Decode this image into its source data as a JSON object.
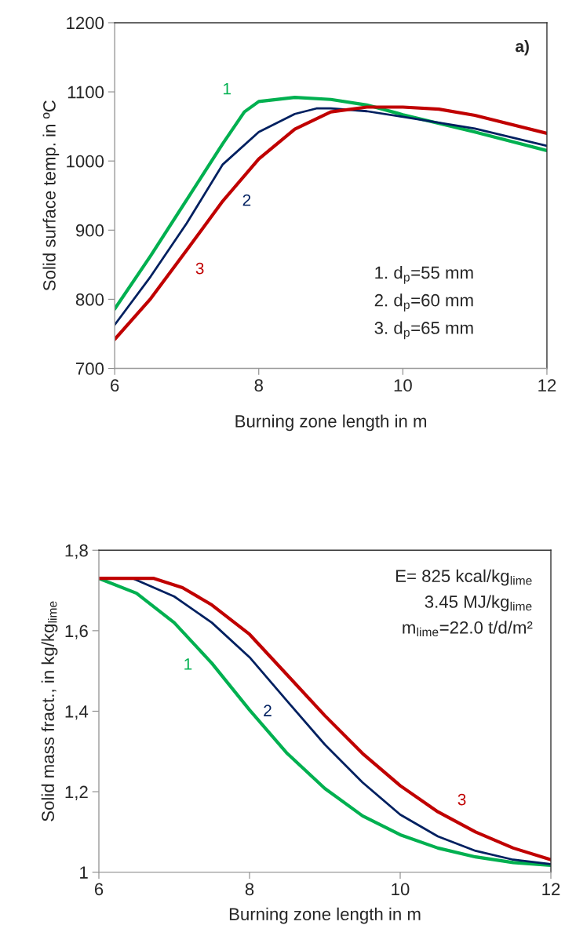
{
  "chart_data": [
    {
      "type": "line",
      "xlabel": "Burning zone length in m",
      "ylabel": "Solid surface temp. in ºC",
      "xlim": [
        6,
        12
      ],
      "ylim": [
        700,
        1200
      ],
      "xticks": [
        6,
        8,
        10,
        12
      ],
      "yticks": [
        700,
        800,
        900,
        1000,
        1100,
        1200
      ],
      "grid": false,
      "legend": false,
      "annotations": [
        "a)",
        "1. d$_{p}$=55 mm",
        "2. d$_{p}$=60 mm",
        "3. d$_{p}$=65 mm"
      ],
      "series": [
        {
          "name": "1",
          "color": "#00b050",
          "x": [
            6,
            6.5,
            7,
            7.5,
            7.8,
            8,
            8.5,
            9,
            9.5,
            10,
            11,
            12
          ],
          "values": [
            786,
            863,
            944,
            1025,
            1071,
            1086,
            1092,
            1089,
            1081,
            1067,
            1042,
            1015
          ]
        },
        {
          "name": "2",
          "color": "#002060",
          "x": [
            6,
            6.5,
            7,
            7.5,
            8,
            8.5,
            8.8,
            9,
            9.5,
            10,
            11,
            12
          ],
          "values": [
            763,
            833,
            910,
            995,
            1042,
            1068,
            1076,
            1076,
            1072,
            1064,
            1047,
            1022
          ]
        },
        {
          "name": "3",
          "color": "#c00000",
          "x": [
            6,
            6.5,
            7,
            7.5,
            8,
            8.5,
            9,
            9.5,
            10,
            10.5,
            11,
            12
          ],
          "values": [
            742,
            801,
            871,
            942,
            1003,
            1046,
            1071,
            1078,
            1078,
            1075,
            1066,
            1040
          ]
        }
      ]
    },
    {
      "type": "line",
      "xlabel": "Burning zone length in m",
      "ylabel": "Solid mass fract., in kg/kg$_{lime}$",
      "xlim": [
        6,
        12
      ],
      "ylim": [
        1,
        1.8
      ],
      "xticks": [
        6,
        8,
        10,
        12
      ],
      "yticks": [
        1,
        {
          "value": 1.2,
          "label": "1,2"
        },
        {
          "value": 1.4,
          "label": "1,4"
        },
        {
          "value": 1.6,
          "label": "1,6"
        },
        {
          "value": 1.8,
          "label": "1,8"
        }
      ],
      "grid": false,
      "legend": false,
      "annotations": [
        "E= 825 kcal/kg$_{lime}$",
        "3.45 MJ/kg$_{lime}$",
        "m$_{lime}$=22.0 t/d/m²"
      ],
      "series": [
        {
          "name": "1",
          "color": "#00b050",
          "x": [
            6,
            6.5,
            7,
            7.5,
            8,
            8.5,
            9,
            9.5,
            10,
            10.5,
            11,
            11.5,
            12
          ],
          "values": [
            1.73,
            1.693,
            1.62,
            1.519,
            1.403,
            1.295,
            1.208,
            1.14,
            1.093,
            1.06,
            1.038,
            1.024,
            1.017
          ]
        },
        {
          "name": "2",
          "color": "#002060",
          "x": [
            6,
            6.45,
            7,
            7.5,
            8,
            8.5,
            9,
            9.5,
            10,
            10.5,
            11,
            11.5,
            12
          ],
          "values": [
            1.73,
            1.73,
            1.685,
            1.62,
            1.534,
            1.425,
            1.317,
            1.223,
            1.143,
            1.089,
            1.053,
            1.031,
            1.02
          ]
        },
        {
          "name": "3",
          "color": "#c00000",
          "x": [
            6,
            6.73,
            7.11,
            7.5,
            8,
            8.5,
            9,
            9.5,
            10,
            10.5,
            11,
            11.5,
            12
          ],
          "values": [
            1.73,
            1.73,
            1.707,
            1.664,
            1.591,
            1.49,
            1.389,
            1.295,
            1.215,
            1.15,
            1.1,
            1.06,
            1.031
          ]
        }
      ]
    }
  ]
}
